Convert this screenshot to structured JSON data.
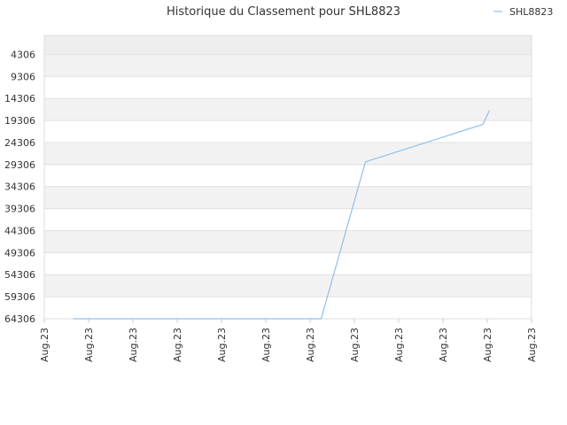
{
  "chart_data": {
    "type": "line",
    "title": "Historique du Classement pour SHL8823",
    "xlabel": "",
    "ylabel": "",
    "x_tick_labels": [
      "Aug.23",
      "Aug.23",
      "Aug.23",
      "Aug.23",
      "Aug.23",
      "Aug.23",
      "Aug.23",
      "Aug.23",
      "Aug.23",
      "Aug.23",
      "Aug.23",
      "Aug.23"
    ],
    "y_tick_labels": [
      "4306",
      "9306",
      "14306",
      "19306",
      "24306",
      "29306",
      "34306",
      "39306",
      "44306",
      "49306",
      "54306",
      "59306",
      "64306"
    ],
    "y_inverted": true,
    "ylim": [
      64306,
      0
    ],
    "grid": "horizontal alternating bands",
    "legend_position": "top-right",
    "series": [
      {
        "name": "SHL8823",
        "color": "#90c0ec",
        "points": [
          {
            "x": 0.65,
            "y": 64306
          },
          {
            "x": 6.25,
            "y": 64306
          },
          {
            "x": 7.25,
            "y": 28700
          },
          {
            "x": 9.9,
            "y": 20200
          },
          {
            "x": 10.05,
            "y": 17000
          }
        ]
      }
    ]
  }
}
